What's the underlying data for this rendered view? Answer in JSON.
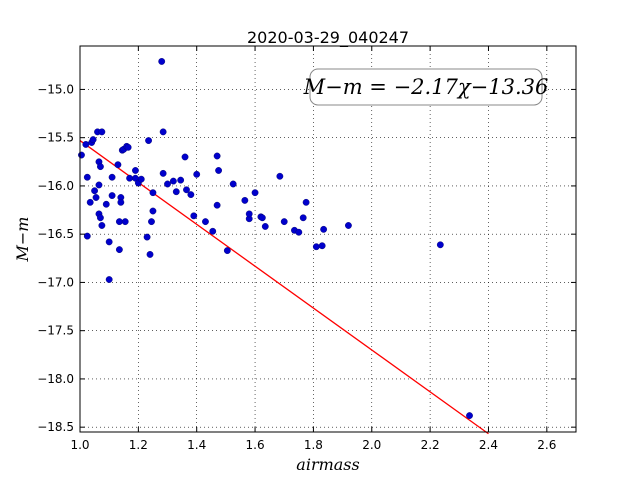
{
  "chart_data": {
    "type": "scatter",
    "title": "2020-03-29_040247",
    "xlabel": "airmass",
    "ylabel": "M−m",
    "xlim": [
      1.0,
      2.7
    ],
    "ylim": [
      -18.55,
      -14.55
    ],
    "x_ticks": [
      "1.0",
      "1.2",
      "1.4",
      "1.6",
      "1.8",
      "2.0",
      "2.2",
      "2.4",
      "2.6"
    ],
    "x_tick_values": [
      1.0,
      1.2,
      1.4,
      1.6,
      1.8,
      2.0,
      2.2,
      2.4,
      2.6
    ],
    "y_ticks": [
      "−15.0",
      "−15.5",
      "−16.0",
      "−16.5",
      "−17.0",
      "−17.5",
      "−18.0",
      "−18.5"
    ],
    "y_tick_values": [
      -15.0,
      -15.5,
      -16.0,
      -16.5,
      -17.0,
      -17.5,
      -18.0,
      -18.5
    ],
    "grid": true,
    "annotation": "M−m = −2.17χ−13.36",
    "fit_line": {
      "slope": -2.17,
      "intercept": -13.36,
      "x_start": 1.0,
      "x_end": 2.4,
      "color": "#ff0000"
    },
    "point_color": "#0000cc",
    "points": [
      [
        1.005,
        -15.68
      ],
      [
        1.02,
        -15.57
      ],
      [
        1.025,
        -15.91
      ],
      [
        1.025,
        -16.52
      ],
      [
        1.035,
        -16.17
      ],
      [
        1.04,
        -15.55
      ],
      [
        1.045,
        -15.52
      ],
      [
        1.05,
        -16.05
      ],
      [
        1.055,
        -16.12
      ],
      [
        1.06,
        -15.44
      ],
      [
        1.065,
        -15.75
      ],
      [
        1.065,
        -15.99
      ],
      [
        1.065,
        -16.29
      ],
      [
        1.07,
        -15.8
      ],
      [
        1.07,
        -16.33
      ],
      [
        1.075,
        -15.44
      ],
      [
        1.075,
        -16.41
      ],
      [
        1.09,
        -16.19
      ],
      [
        1.1,
        -16.58
      ],
      [
        1.1,
        -16.97
      ],
      [
        1.11,
        -15.91
      ],
      [
        1.11,
        -16.1
      ],
      [
        1.13,
        -15.78
      ],
      [
        1.135,
        -16.66
      ],
      [
        1.135,
        -16.37
      ],
      [
        1.14,
        -16.12
      ],
      [
        1.14,
        -16.17
      ],
      [
        1.145,
        -15.63
      ],
      [
        1.15,
        -15.62
      ],
      [
        1.155,
        -16.37
      ],
      [
        1.16,
        -15.59
      ],
      [
        1.165,
        -15.6
      ],
      [
        1.17,
        -15.92
      ],
      [
        1.19,
        -15.84
      ],
      [
        1.19,
        -15.92
      ],
      [
        1.2,
        -15.97
      ],
      [
        1.21,
        -15.93
      ],
      [
        1.23,
        -16.53
      ],
      [
        1.235,
        -15.53
      ],
      [
        1.24,
        -16.71
      ],
      [
        1.245,
        -16.37
      ],
      [
        1.25,
        -16.07
      ],
      [
        1.25,
        -16.26
      ],
      [
        1.28,
        -14.71
      ],
      [
        1.285,
        -15.87
      ],
      [
        1.285,
        -15.44
      ],
      [
        1.3,
        -15.98
      ],
      [
        1.32,
        -15.95
      ],
      [
        1.33,
        -16.06
      ],
      [
        1.345,
        -15.94
      ],
      [
        1.36,
        -15.7
      ],
      [
        1.365,
        -16.04
      ],
      [
        1.38,
        -16.09
      ],
      [
        1.39,
        -16.31
      ],
      [
        1.4,
        -15.88
      ],
      [
        1.43,
        -16.37
      ],
      [
        1.455,
        -16.47
      ],
      [
        1.47,
        -15.69
      ],
      [
        1.47,
        -16.2
      ],
      [
        1.475,
        -15.84
      ],
      [
        1.505,
        -16.67
      ],
      [
        1.525,
        -15.98
      ],
      [
        1.565,
        -16.15
      ],
      [
        1.58,
        -16.34
      ],
      [
        1.58,
        -16.29
      ],
      [
        1.6,
        -16.07
      ],
      [
        1.62,
        -16.32
      ],
      [
        1.625,
        -16.33
      ],
      [
        1.635,
        -16.42
      ],
      [
        1.685,
        -15.9
      ],
      [
        1.7,
        -16.37
      ],
      [
        1.735,
        -16.46
      ],
      [
        1.75,
        -16.48
      ],
      [
        1.765,
        -16.33
      ],
      [
        1.775,
        -16.17
      ],
      [
        1.81,
        -16.63
      ],
      [
        1.83,
        -16.62
      ],
      [
        1.835,
        -16.45
      ],
      [
        1.92,
        -16.41
      ],
      [
        2.235,
        -16.61
      ],
      [
        2.335,
        -18.38
      ]
    ]
  }
}
